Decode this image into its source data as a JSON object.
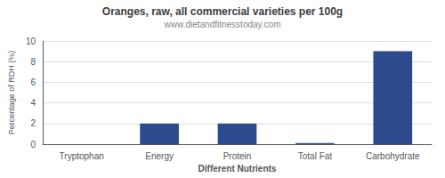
{
  "chart_data": {
    "type": "bar",
    "title": "Oranges, raw, all commercial varieties per 100g",
    "subtitle": "www.dietandfitnesstoday.com",
    "xlabel": "Different Nutrients",
    "ylabel": "Percentage of RDH (%)",
    "categories": [
      "Tryptophan",
      "Energy",
      "Protein",
      "Total Fat",
      "Carbohydrate"
    ],
    "values": [
      0.0,
      2.0,
      2.0,
      0.1,
      9.0
    ],
    "color": "#2e4a8e",
    "ylim": [
      0,
      10
    ],
    "yticks": [
      0,
      2,
      4,
      6,
      8,
      10
    ],
    "grid": true
  }
}
